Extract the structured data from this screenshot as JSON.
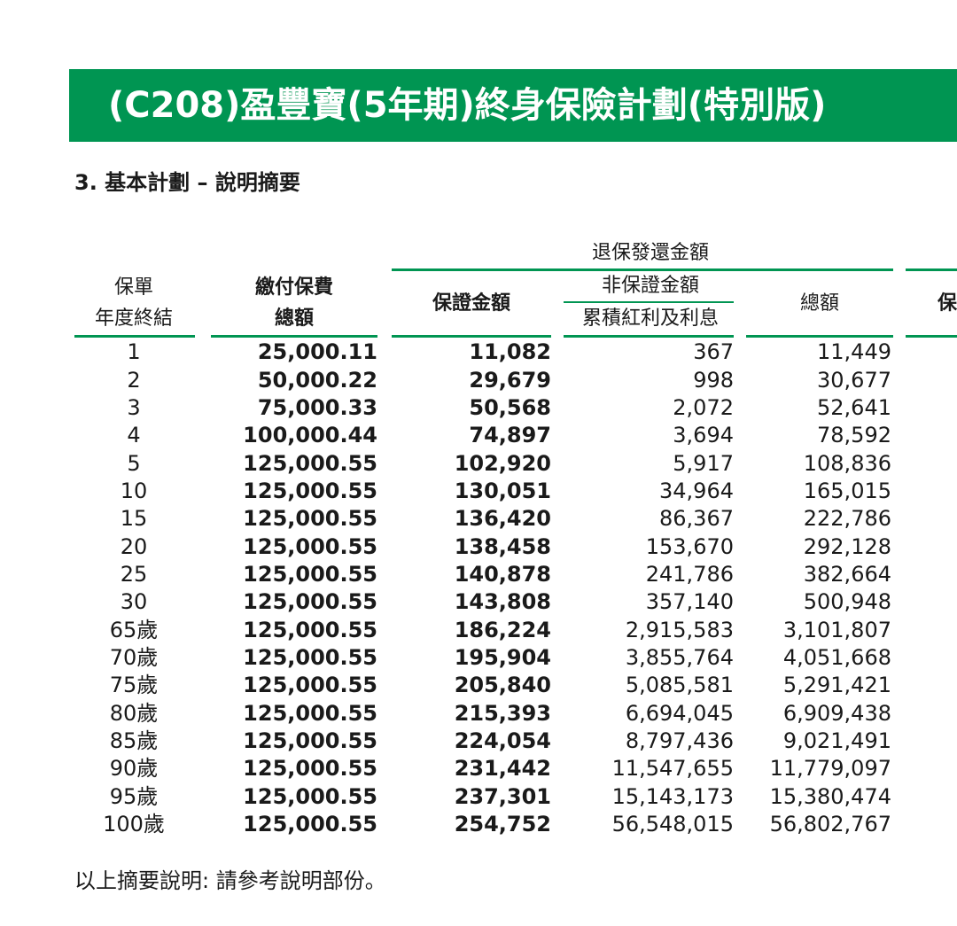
{
  "banner": {
    "title": "(C208)盈豐寶(5年期)終身保險計劃(特別版)"
  },
  "section": {
    "title": "3. 基本計劃 – 說明摘要"
  },
  "headers": {
    "surrender_group": "退保發還金額",
    "year_line1": "保單",
    "year_line2": "年度終結",
    "premium_line1": "繳付保費",
    "premium_line2": "總額",
    "guaranteed": "保證金額",
    "non_guaranteed": "非保證金額",
    "bonus": "累積紅利及利息",
    "total": "總額",
    "cut_off": "保"
  },
  "rows": [
    {
      "year": "1",
      "premium": "25,000.11",
      "guaranteed": "11,082",
      "bonus": "367",
      "total": "11,449"
    },
    {
      "year": "2",
      "premium": "50,000.22",
      "guaranteed": "29,679",
      "bonus": "998",
      "total": "30,677"
    },
    {
      "year": "3",
      "premium": "75,000.33",
      "guaranteed": "50,568",
      "bonus": "2,072",
      "total": "52,641"
    },
    {
      "year": "4",
      "premium": "100,000.44",
      "guaranteed": "74,897",
      "bonus": "3,694",
      "total": "78,592"
    },
    {
      "year": "5",
      "premium": "125,000.55",
      "guaranteed": "102,920",
      "bonus": "5,917",
      "total": "108,836"
    },
    {
      "year": "10",
      "premium": "125,000.55",
      "guaranteed": "130,051",
      "bonus": "34,964",
      "total": "165,015"
    },
    {
      "year": "15",
      "premium": "125,000.55",
      "guaranteed": "136,420",
      "bonus": "86,367",
      "total": "222,786"
    },
    {
      "year": "20",
      "premium": "125,000.55",
      "guaranteed": "138,458",
      "bonus": "153,670",
      "total": "292,128"
    },
    {
      "year": "25",
      "premium": "125,000.55",
      "guaranteed": "140,878",
      "bonus": "241,786",
      "total": "382,664"
    },
    {
      "year": "30",
      "premium": "125,000.55",
      "guaranteed": "143,808",
      "bonus": "357,140",
      "total": "500,948"
    },
    {
      "year": "65歲",
      "premium": "125,000.55",
      "guaranteed": "186,224",
      "bonus": "2,915,583",
      "total": "3,101,807"
    },
    {
      "year": "70歲",
      "premium": "125,000.55",
      "guaranteed": "195,904",
      "bonus": "3,855,764",
      "total": "4,051,668"
    },
    {
      "year": "75歲",
      "premium": "125,000.55",
      "guaranteed": "205,840",
      "bonus": "5,085,581",
      "total": "5,291,421"
    },
    {
      "year": "80歲",
      "premium": "125,000.55",
      "guaranteed": "215,393",
      "bonus": "6,694,045",
      "total": "6,909,438"
    },
    {
      "year": "85歲",
      "premium": "125,000.55",
      "guaranteed": "224,054",
      "bonus": "8,797,436",
      "total": "9,021,491"
    },
    {
      "year": "90歲",
      "premium": "125,000.55",
      "guaranteed": "231,442",
      "bonus": "11,547,655",
      "total": "11,779,097"
    },
    {
      "year": "95歲",
      "premium": "125,000.55",
      "guaranteed": "237,301",
      "bonus": "15,143,173",
      "total": "15,380,474"
    },
    {
      "year": "100歲",
      "premium": "125,000.55",
      "guaranteed": "254,752",
      "bonus": "56,548,015",
      "total": "56,802,767"
    }
  ],
  "footnote": "以上摘要說明: 請參考說明部份。",
  "colors": {
    "accent": "#009552"
  }
}
